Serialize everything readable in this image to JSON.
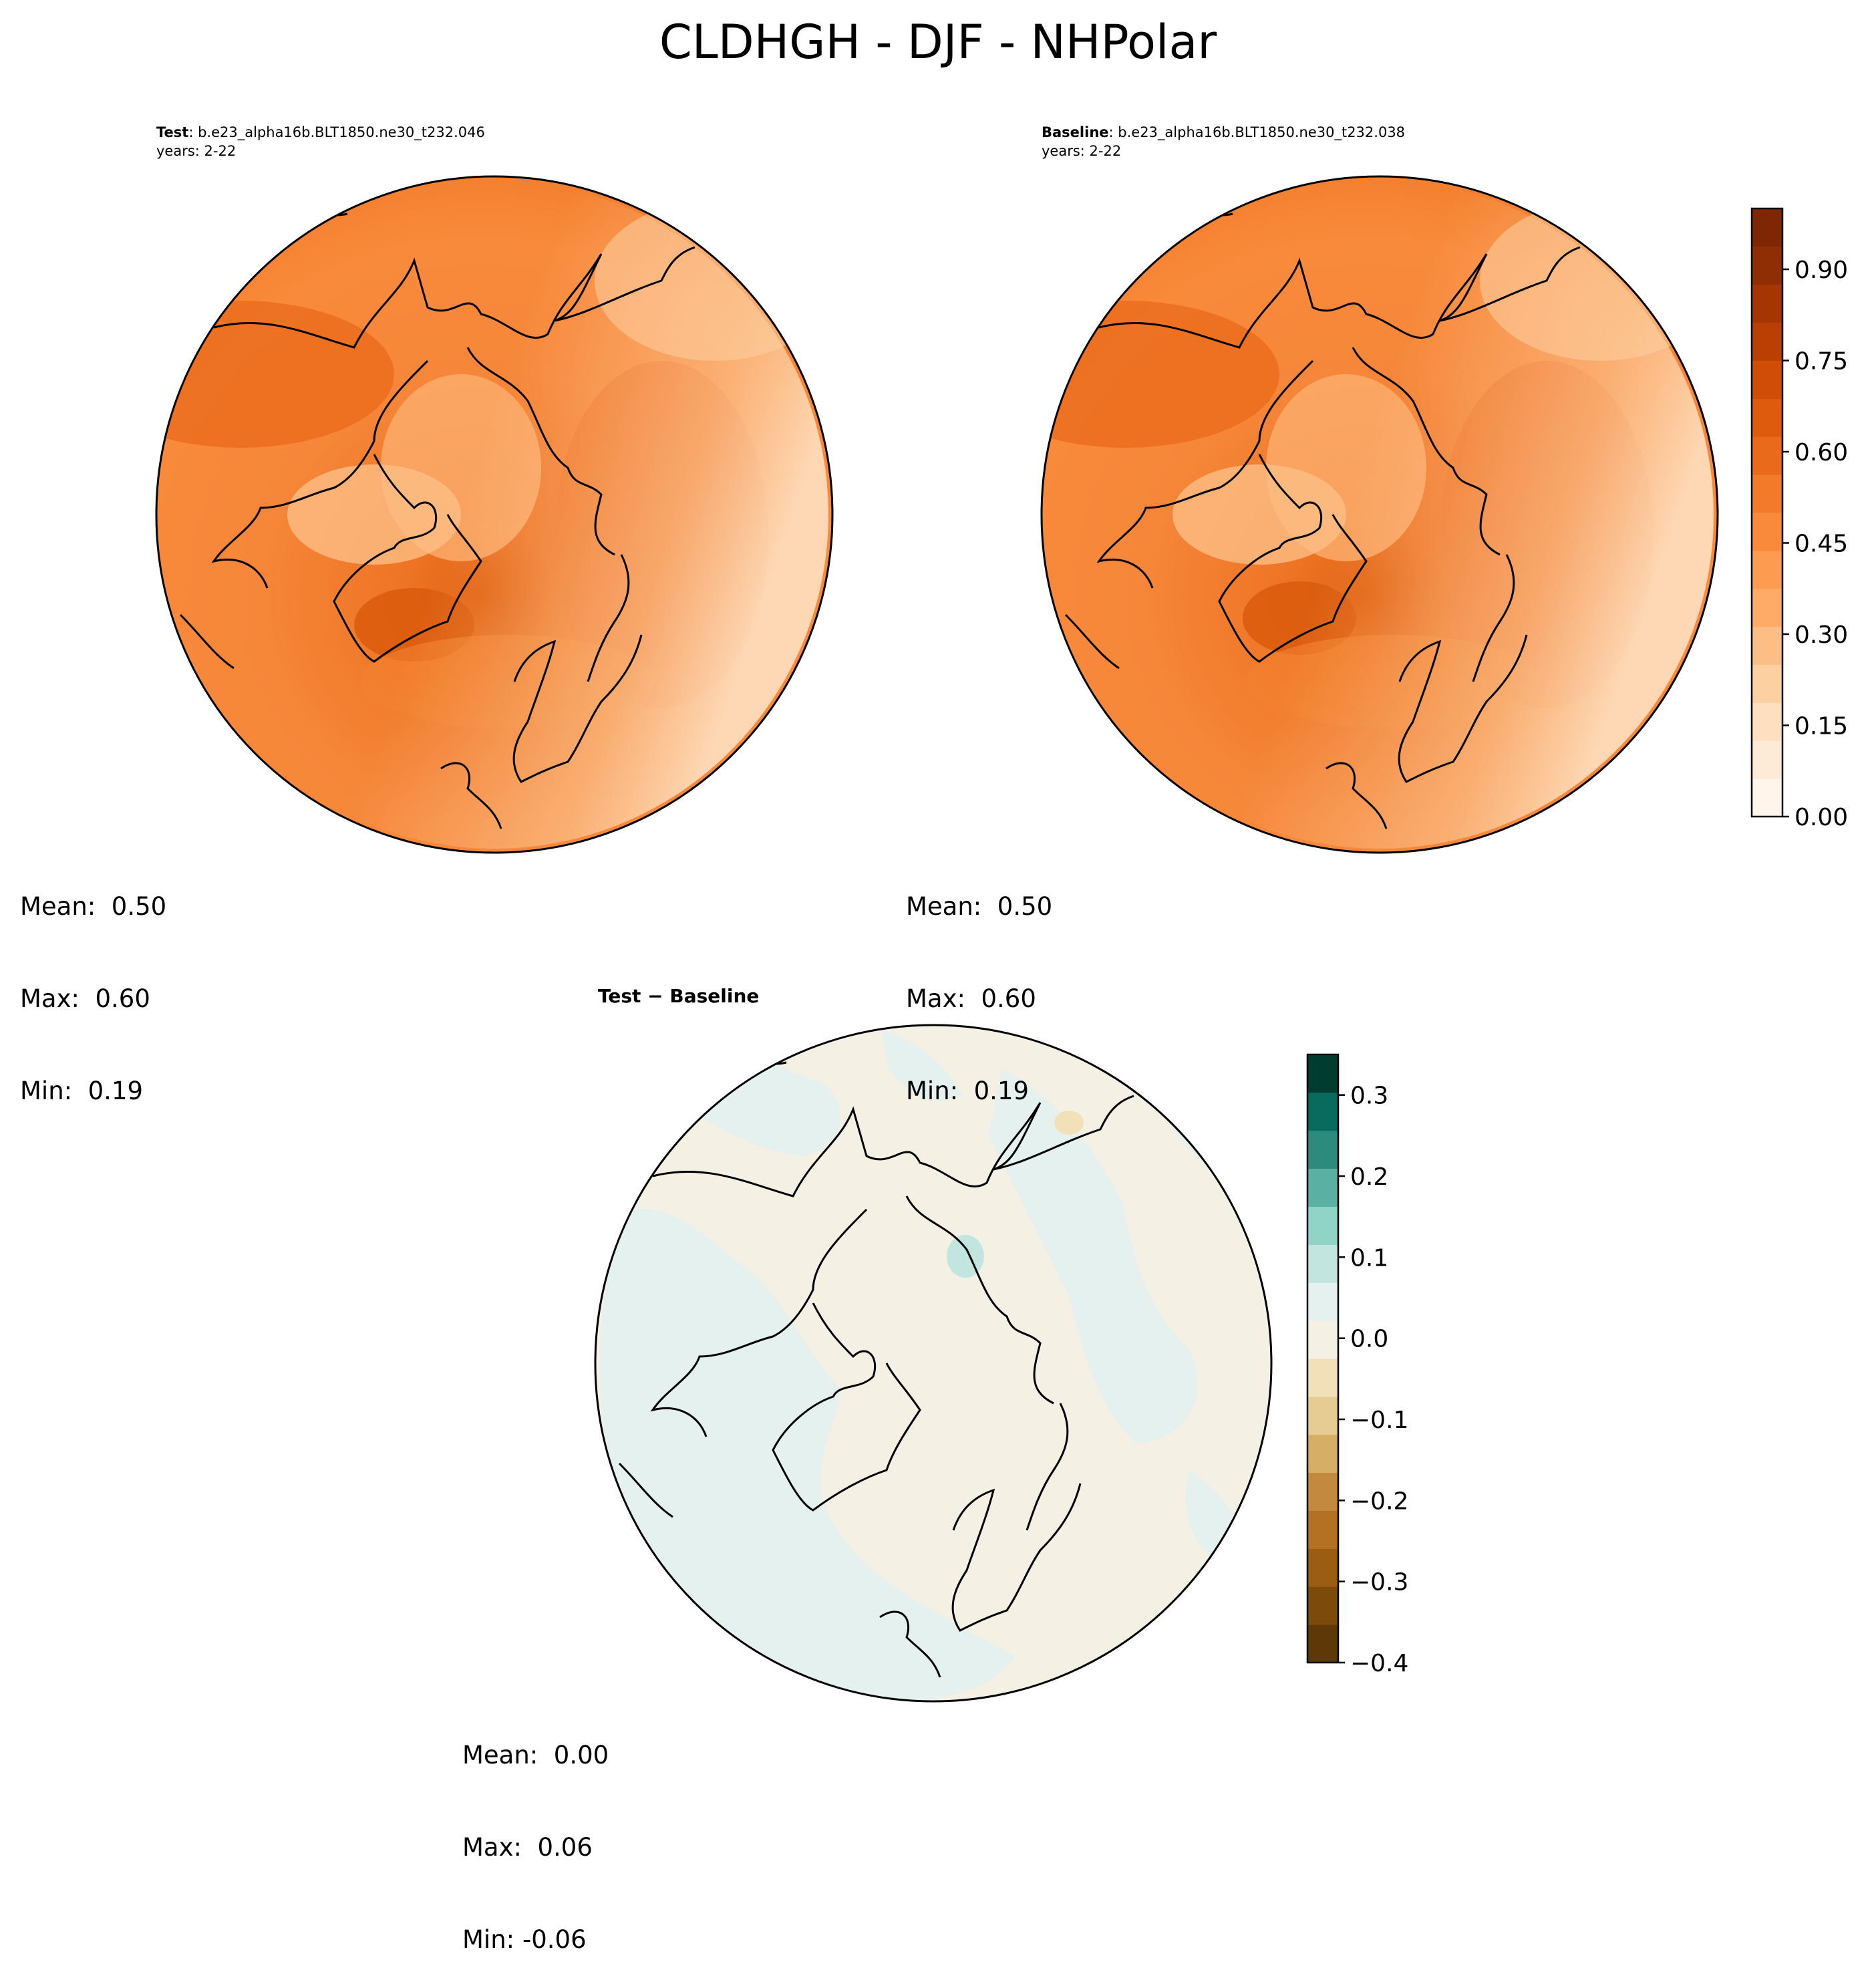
{
  "title": "CLDHGH - DJF - NHPolar",
  "test_panel": {
    "label": "Test",
    "case": ": b.e23_alpha16b.BLT1850.ne30_t232.046",
    "years": "years: 2-22",
    "stats": {
      "mean": "Mean:  0.50",
      "max": "Max:  0.60",
      "min": "Min:  0.19"
    }
  },
  "baseline_panel": {
    "label": "Baseline",
    "case": ": b.e23_alpha16b.BLT1850.ne30_t232.038",
    "years": "years: 2-22",
    "stats": {
      "mean": "Mean:  0.50",
      "max": "Max:  0.60",
      "min": "Min:  0.19"
    }
  },
  "diff_panel": {
    "title": "Test − Baseline",
    "stats": {
      "mean": "Mean:  0.00",
      "max": "Max:  0.06",
      "min": "Min: -0.06"
    }
  },
  "colorbars": {
    "main": {
      "colormap": "Oranges",
      "range": [
        0.0,
        1.0
      ],
      "ticks": [
        "0.00",
        "0.15",
        "0.30",
        "0.45",
        "0.60",
        "0.75",
        "0.90"
      ],
      "tick_values": [
        0.0,
        0.15,
        0.3,
        0.45,
        0.6,
        0.75,
        0.9
      ],
      "colors": [
        "#fff5eb",
        "#feebd7",
        "#fee0c1",
        "#fdd0a2",
        "#fdbe85",
        "#fdab67",
        "#fd9b50",
        "#f98a3c",
        "#f27b2a",
        "#e96a1a",
        "#de5b0e",
        "#cf4d06",
        "#b94002",
        "#a53603",
        "#8f2d04",
        "#7f2704"
      ]
    },
    "diff": {
      "colormap": "BrBG",
      "range": [
        -0.4,
        0.35
      ],
      "ticks": [
        "−0.4",
        "−0.3",
        "−0.2",
        "−0.1",
        "0.0",
        "0.1",
        "0.2",
        "0.3"
      ],
      "tick_values": [
        -0.4,
        -0.3,
        -0.2,
        -0.1,
        0.0,
        0.1,
        0.2,
        0.3
      ],
      "colors": [
        "#5e3806",
        "#7c4a0b",
        "#9b5d12",
        "#b47124",
        "#c38a3f",
        "#d6ae66",
        "#e6cc92",
        "#f2e1b8",
        "#f5f0e4",
        "#e4f1ee",
        "#c2e6df",
        "#90d3c7",
        "#5bb0a4",
        "#2d8b7e",
        "#086b5d",
        "#003c30"
      ]
    }
  }
}
